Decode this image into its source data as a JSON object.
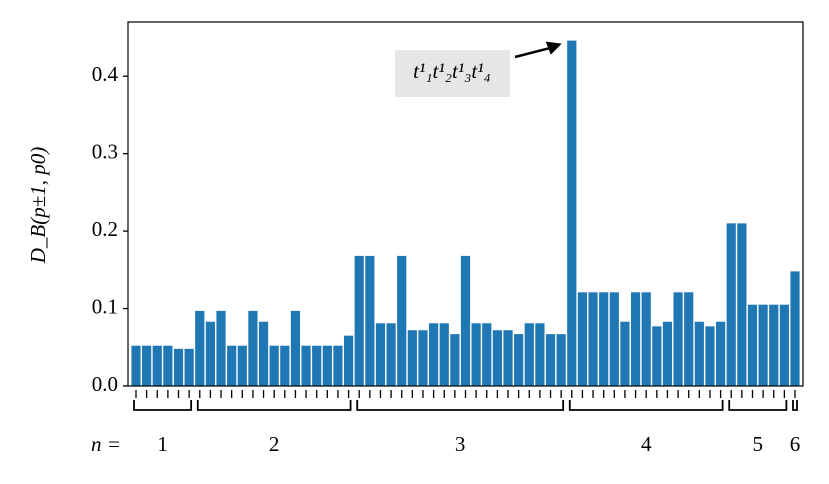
{
  "chart_data": {
    "type": "bar",
    "y_label": "D_B(p±1, p0)",
    "annotation": "t¹₁t¹₂t¹₃t¹₄",
    "group_prefix": "n =",
    "group_labels": [
      "1",
      "2",
      "3",
      "4",
      "5",
      "6"
    ],
    "color": "#1f77b4",
    "values": [
      0.052,
      0.052,
      0.052,
      0.052,
      0.048,
      0.048,
      0.097,
      0.083,
      0.097,
      0.052,
      0.052,
      0.097,
      0.083,
      0.052,
      0.052,
      0.097,
      0.052,
      0.052,
      0.052,
      0.052,
      0.065,
      0.168,
      0.168,
      0.081,
      0.081,
      0.168,
      0.072,
      0.072,
      0.081,
      0.081,
      0.067,
      0.168,
      0.081,
      0.081,
      0.072,
      0.072,
      0.067,
      0.081,
      0.081,
      0.067,
      0.067,
      0.446,
      0.121,
      0.121,
      0.121,
      0.121,
      0.083,
      0.121,
      0.121,
      0.077,
      0.083,
      0.121,
      0.121,
      0.083,
      0.077,
      0.083,
      0.21,
      0.21,
      0.105,
      0.105,
      0.105,
      0.105,
      0.148
    ],
    "ylim": [
      0,
      0.47
    ],
    "yticks": [
      {
        "value": 0,
        "label": "0.0"
      },
      0.1,
      0.2,
      0.3,
      0.4
    ]
  }
}
